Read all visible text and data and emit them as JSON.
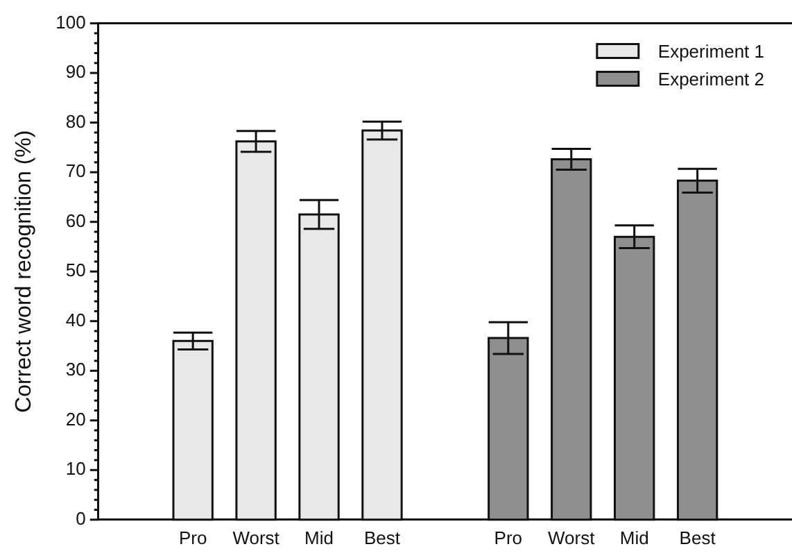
{
  "chart_data": {
    "type": "bar",
    "ylabel": "Correct word recognition (%)",
    "categories": [
      null,
      "Pro",
      "Worst",
      "Mid",
      "Best",
      null,
      "Pro",
      "Worst",
      "Mid",
      "Best",
      null
    ],
    "series": [
      {
        "name": "Experiment 1",
        "color": "#e8e8e8",
        "values": [
          null,
          36.0,
          76.2,
          61.5,
          78.4,
          null,
          null,
          null,
          null,
          null,
          null
        ],
        "errors": [
          null,
          1.7,
          2.1,
          2.9,
          1.8,
          null,
          null,
          null,
          null,
          null,
          null
        ]
      },
      {
        "name": "Experiment 2",
        "color": "#8f8f8f",
        "values": [
          null,
          null,
          null,
          null,
          null,
          null,
          36.6,
          72.6,
          57.0,
          68.3,
          null
        ],
        "errors": [
          null,
          null,
          null,
          null,
          null,
          null,
          3.2,
          2.1,
          2.3,
          2.4,
          null
        ]
      }
    ],
    "ylim": [
      0,
      100
    ],
    "yticks": [
      0,
      {
        "value": 2,
        "label": null
      },
      {
        "value": 4,
        "label": null
      },
      {
        "value": 6,
        "label": null
      },
      {
        "value": 8,
        "label": null
      },
      10,
      {
        "value": 12,
        "label": null
      },
      {
        "value": 14,
        "label": null
      },
      {
        "value": 16,
        "label": null
      },
      {
        "value": 18,
        "label": null
      },
      20,
      {
        "value": 22,
        "label": null
      },
      {
        "value": 24,
        "label": null
      },
      {
        "value": 26,
        "label": null
      },
      {
        "value": 28,
        "label": null
      },
      30,
      {
        "value": 32,
        "label": null
      },
      {
        "value": 34,
        "label": null
      },
      {
        "value": 36,
        "label": null
      },
      {
        "value": 38,
        "label": null
      },
      40,
      {
        "value": 42,
        "label": null
      },
      {
        "value": 44,
        "label": null
      },
      {
        "value": 46,
        "label": null
      },
      {
        "value": 48,
        "label": null
      },
      50,
      {
        "value": 52,
        "label": null
      },
      {
        "value": 54,
        "label": null
      },
      {
        "value": 56,
        "label": null
      },
      {
        "value": 58,
        "label": null
      },
      60,
      {
        "value": 62,
        "label": null
      },
      {
        "value": 64,
        "label": null
      },
      {
        "value": 66,
        "label": null
      },
      {
        "value": 68,
        "label": null
      },
      70,
      {
        "value": 72,
        "label": null
      },
      {
        "value": 74,
        "label": null
      },
      {
        "value": 76,
        "label": null
      },
      {
        "value": 78,
        "label": null
      },
      80,
      {
        "value": 82,
        "label": null
      },
      {
        "value": 84,
        "label": null
      },
      {
        "value": 86,
        "label": null
      },
      {
        "value": 88,
        "label": null
      },
      90,
      {
        "value": 92,
        "label": null
      },
      {
        "value": 94,
        "label": null
      },
      {
        "value": 96,
        "label": null
      },
      {
        "value": 98,
        "label": null
      },
      100
    ],
    "grid": false,
    "legend": "top right"
  }
}
